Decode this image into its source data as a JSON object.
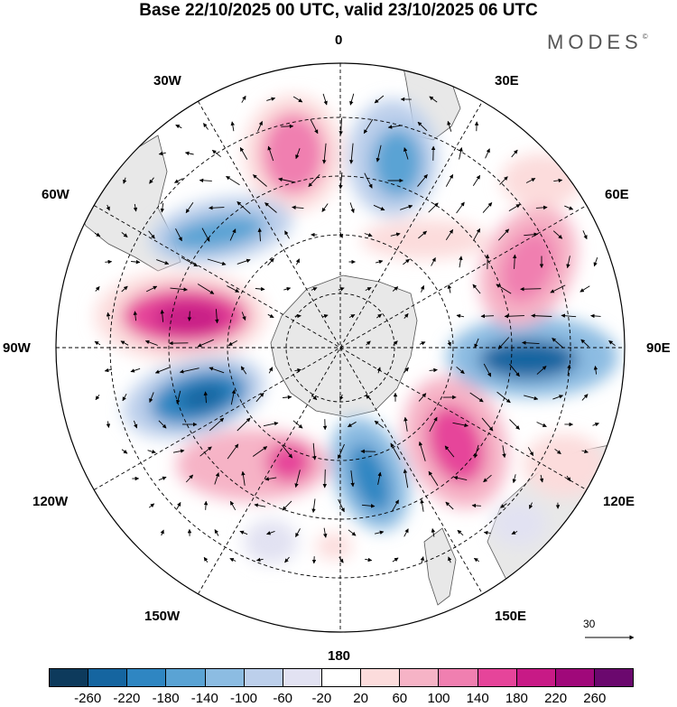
{
  "title": "Base 22/10/2025 00 UTC, valid 23/10/2025 06 UTC",
  "brand": {
    "name": "MODES",
    "mark": "©"
  },
  "longitude_labels": {
    "lon_0": "0",
    "lon_30e": "30E",
    "lon_60e": "60E",
    "lon_90e": "90E",
    "lon_120e": "120E",
    "lon_150e": "150E",
    "lon_180": "180",
    "lon_150w": "150W",
    "lon_120w": "120W",
    "lon_90w": "90W",
    "lon_60w": "60W",
    "lon_30w": "30W"
  },
  "vector_reference": {
    "value": "30"
  },
  "colorbar": {
    "colors": [
      "#0d3a5c",
      "#1565a0",
      "#2f86c2",
      "#5aa3d4",
      "#8cbce2",
      "#bccfeb",
      "#e2e2f2",
      "#ffffff",
      "#fcdcdc",
      "#f6b3c6",
      "#f07fb0",
      "#e6449a",
      "#c81a86",
      "#a0087a",
      "#6b086e"
    ],
    "ticks": [
      "-260",
      "-220",
      "-180",
      "-140",
      "-100",
      "-60",
      "-20",
      "20",
      "60",
      "100",
      "140",
      "180",
      "220",
      "260"
    ]
  },
  "colors": {
    "land": "#e8e8e8",
    "coast": "#555555",
    "grid": "#000000"
  }
}
